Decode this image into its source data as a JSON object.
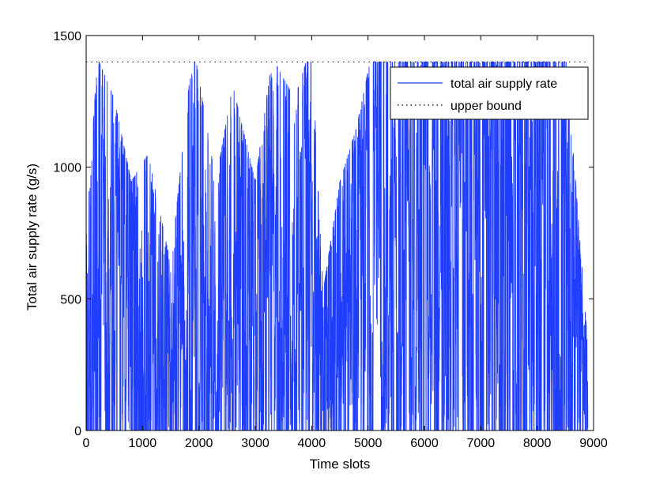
{
  "chart_data": {
    "type": "line",
    "title": "",
    "xlabel": "Time slots",
    "ylabel": "Total air supply rate (g/s)",
    "xlim": [
      0,
      9000
    ],
    "ylim": [
      0,
      1500
    ],
    "xticks": [
      0,
      1000,
      2000,
      3000,
      4000,
      5000,
      6000,
      7000,
      8000,
      9000
    ],
    "yticks": [
      0,
      500,
      1000,
      1500
    ],
    "xtick_labels": [
      "0",
      "1000",
      "2000",
      "3000",
      "4000",
      "5000",
      "6000",
      "7000",
      "8000",
      "9000"
    ],
    "ytick_labels": [
      "0",
      "500",
      "1000",
      "1500"
    ],
    "grid": false,
    "legend": {
      "placement": "top-right"
    },
    "series": [
      {
        "name": "total air supply rate",
        "color": "#1f3dff",
        "style": "solid",
        "generation": {
          "n_points": 8900,
          "description": "dense oscillating signal between 0 and 1400"
        },
        "envelope": {
          "x": [
            0,
            200,
            500,
            800,
            1100,
            1500,
            1900,
            2300,
            2600,
            3000,
            3300,
            3700,
            4000,
            4200,
            4500,
            4800,
            5100,
            5500,
            5900,
            6300,
            6700,
            7100,
            7500,
            7900,
            8300,
            8500,
            8700,
            8900
          ],
          "y": [
            700,
            1350,
            1200,
            900,
            1000,
            600,
            1400,
            900,
            1250,
            900,
            1350,
            1200,
            1400,
            500,
            900,
            1100,
            1400,
            1400,
            1400,
            1400,
            1400,
            1400,
            1400,
            1400,
            1400,
            1400,
            850,
            300
          ]
        }
      },
      {
        "name": "upper bound",
        "color": "#000000",
        "style": "dotted",
        "x": [
          0,
          8900
        ],
        "y": [
          1400,
          1400
        ]
      }
    ]
  }
}
